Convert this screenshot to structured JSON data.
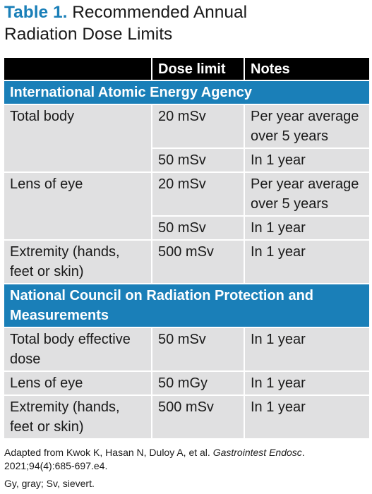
{
  "title": {
    "label": "Table 1.",
    "line1": "Recommended Annual",
    "line2": "Radiation Dose Limits"
  },
  "table": {
    "headers": [
      "",
      "Dose limit",
      "Notes"
    ],
    "sections": [
      {
        "name": "International Atomic Energy Agency",
        "rows": [
          {
            "item": "Total body",
            "dose": "20 mSv",
            "note": "Per year average over 5 years"
          },
          {
            "item": "",
            "dose": "50 mSv",
            "note": "In 1 year"
          },
          {
            "item": "Lens of eye",
            "dose": "20 mSv",
            "note": "Per year average over 5 years"
          },
          {
            "item": "",
            "dose": "50 mSv",
            "note": "In 1 year"
          },
          {
            "item": "Extremity (hands, feet or skin)",
            "dose": "500 mSv",
            "note": "In 1 year"
          }
        ]
      },
      {
        "name": "National Council on Radiation Protection and Measurements",
        "rows": [
          {
            "item": "Total body effective dose",
            "dose": "50 mSv",
            "note": "In 1 year"
          },
          {
            "item": "Lens of eye",
            "dose": "50 mGy",
            "note": "In 1 year"
          },
          {
            "item": "Extremity (hands, feet or skin)",
            "dose": "500 mSv",
            "note": "In 1 year"
          }
        ]
      }
    ]
  },
  "footnotes": {
    "source_prefix": "Adapted from Kwok K, Hasan N, Duloy A, et al. ",
    "source_journal": "Gastrointest Endosc",
    "source_suffix": ". 2021;94(4):685-697.e4.",
    "abbreviations": "Gy, gray; Sv, sievert."
  },
  "colors": {
    "accent_blue": "#1a7fb8",
    "header_black": "#000000",
    "cell_gray": "#e0e0e1"
  }
}
